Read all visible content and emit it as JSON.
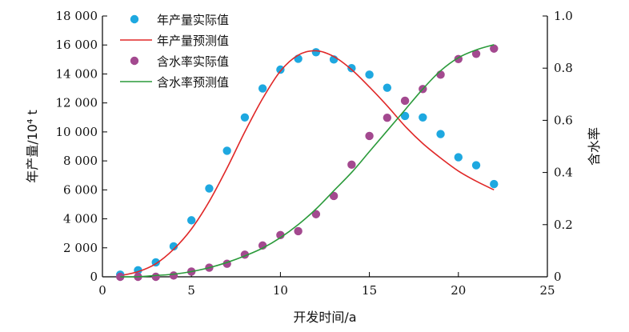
{
  "chart_data": {
    "type": "scatter",
    "xlabel": "开发时间/a",
    "ylabel_left": "年产量/10⁴ t",
    "ylabel_right": "含水率",
    "xlim": [
      0,
      25
    ],
    "ylim_left": [
      0,
      18000
    ],
    "ylim_right": [
      0,
      1.0
    ],
    "x_ticks": [
      "0",
      "5",
      "10",
      "15",
      "20",
      "25"
    ],
    "y_left_ticks": [
      "0",
      "2 000",
      "4 000",
      "6 000",
      "8 000",
      "10 000",
      "12 000",
      "14 000",
      "16 000",
      "18 000"
    ],
    "y_right_ticks": [
      "0",
      "0.2",
      "0.4",
      "0.6",
      "0.8",
      "1.0"
    ],
    "grid": false,
    "legend_position": "top-left",
    "series": [
      {
        "name": "年产量实际值",
        "kind": "scatter",
        "axis": "left",
        "color": "#1ea8e0",
        "x": [
          1,
          2,
          3,
          4,
          5,
          6,
          7,
          8,
          9,
          10,
          11,
          12,
          13,
          14,
          15,
          16,
          17,
          18,
          19,
          20,
          21,
          22
        ],
        "y": [
          150,
          450,
          1000,
          2100,
          3900,
          6100,
          8700,
          11000,
          13000,
          14300,
          15050,
          15500,
          15000,
          14400,
          13950,
          13050,
          11100,
          11000,
          9850,
          8250,
          7700,
          6400
        ]
      },
      {
        "name": "年产量预测值",
        "kind": "line",
        "axis": "left",
        "color": "#e02828",
        "x": [
          1,
          2,
          3,
          4,
          5,
          6,
          7,
          8,
          9,
          10,
          11,
          12,
          13,
          14,
          15,
          16,
          17,
          18,
          19,
          20,
          21,
          22
        ],
        "y": [
          80,
          350,
          900,
          1900,
          3300,
          5200,
          7500,
          10000,
          12300,
          14200,
          15300,
          15600,
          15200,
          14300,
          13100,
          11800,
          10400,
          9200,
          8200,
          7300,
          6600,
          6000
        ]
      },
      {
        "name": "含水率实际值",
        "kind": "scatter",
        "axis": "right",
        "color": "#a3498f",
        "x": [
          1,
          2,
          3,
          4,
          5,
          6,
          7,
          8,
          9,
          10,
          11,
          12,
          13,
          14,
          15,
          16,
          17,
          18,
          19,
          20,
          21,
          22
        ],
        "y": [
          0.0,
          0.0,
          0.0,
          0.005,
          0.02,
          0.035,
          0.05,
          0.085,
          0.12,
          0.16,
          0.175,
          0.24,
          0.31,
          0.43,
          0.54,
          0.61,
          0.675,
          0.72,
          0.775,
          0.835,
          0.855,
          0.875
        ]
      },
      {
        "name": "含水率预测值",
        "kind": "line",
        "axis": "right",
        "color": "#2a9a3a",
        "x": [
          1,
          2,
          3,
          4,
          5,
          6,
          7,
          8,
          9,
          10,
          11,
          12,
          13,
          14,
          15,
          16,
          17,
          18,
          19,
          20,
          21,
          22
        ],
        "y": [
          0.0,
          0.0,
          0.005,
          0.01,
          0.02,
          0.035,
          0.055,
          0.08,
          0.11,
          0.15,
          0.2,
          0.26,
          0.33,
          0.4,
          0.48,
          0.56,
          0.64,
          0.72,
          0.79,
          0.84,
          0.87,
          0.89
        ]
      }
    ]
  }
}
